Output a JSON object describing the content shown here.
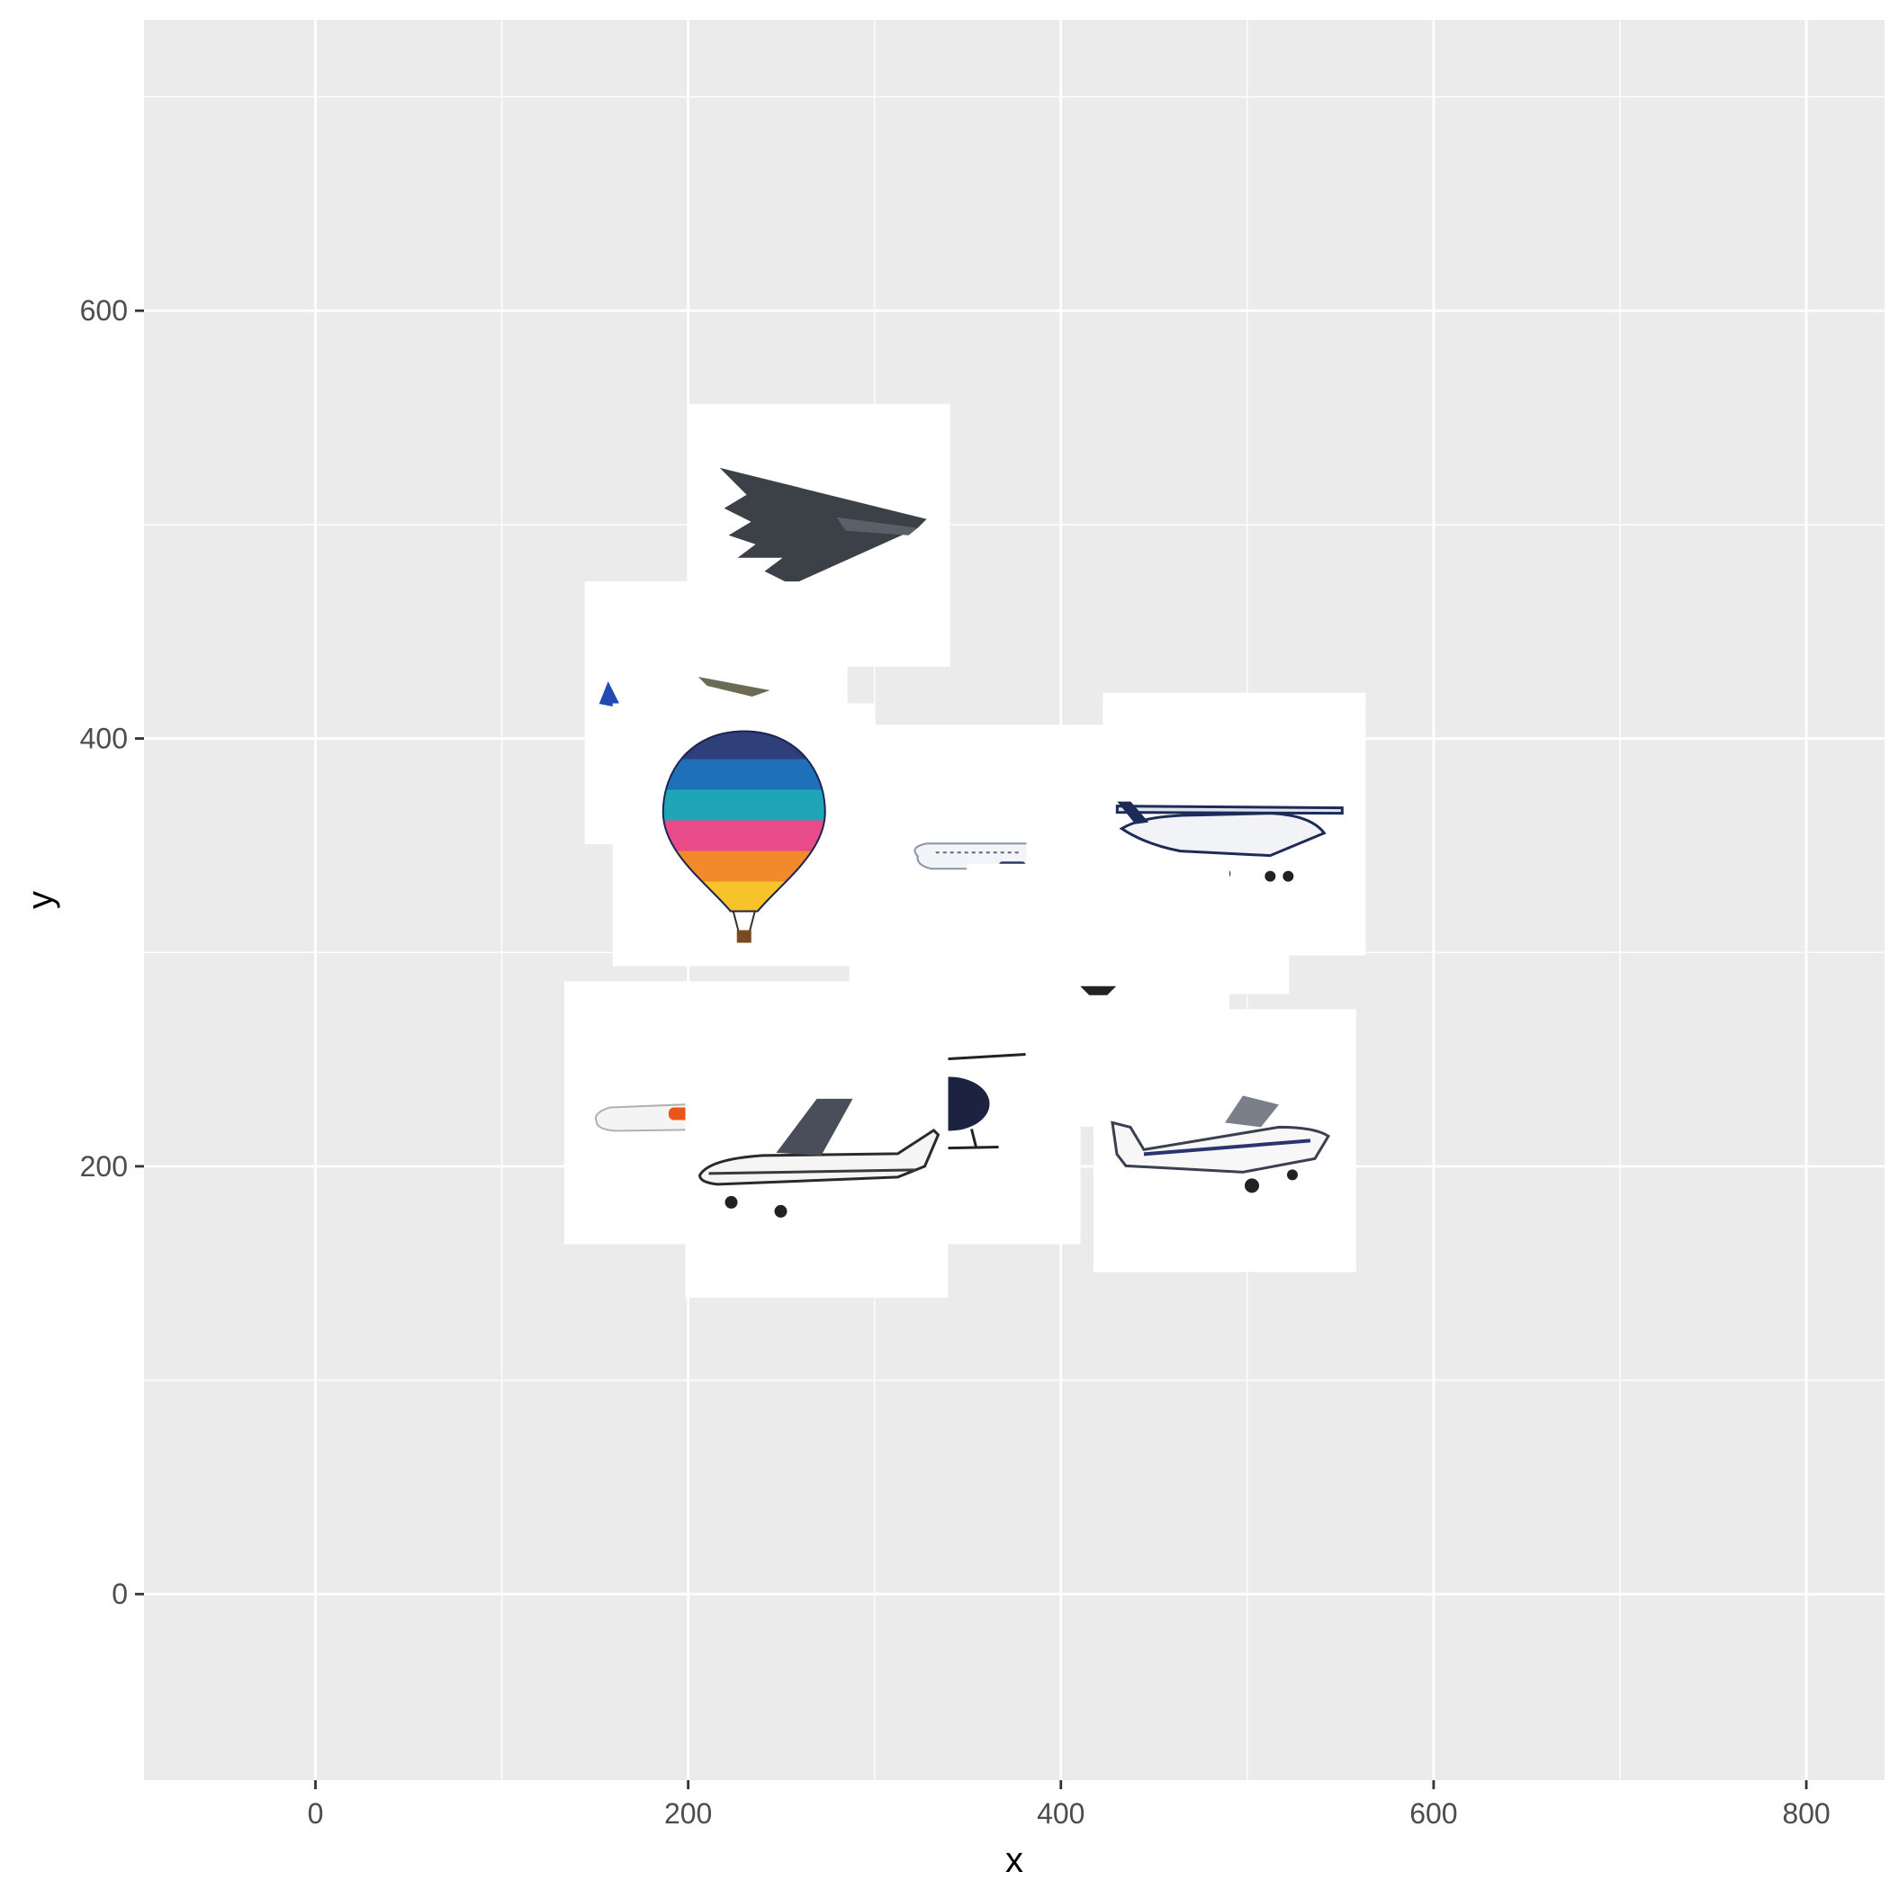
{
  "chart_data": {
    "type": "scatter",
    "marker": "aircraft-photo",
    "xlabel": "x",
    "ylabel": "y",
    "xlim": [
      -92,
      842
    ],
    "ylim": [
      -87,
      736
    ],
    "x_ticks": [
      0,
      200,
      400,
      600,
      800
    ],
    "y_ticks": [
      0,
      200,
      400,
      600
    ],
    "grid": true,
    "colors": {
      "panel": "#EBEBEB",
      "grid": "#FFFFFF",
      "tile": "#FFFFFF"
    },
    "points": [
      {
        "x": 270,
        "y": 495,
        "icon": "stealth-bomber-icon"
      },
      {
        "x": 215,
        "y": 412,
        "icon": "airliner-icon"
      },
      {
        "x": 357,
        "y": 345,
        "icon": "airliner-side-icon"
      },
      {
        "x": 452,
        "y": 342,
        "icon": "tail-fin-icon"
      },
      {
        "x": 493,
        "y": 360,
        "icon": "cessna-high-wing-icon"
      },
      {
        "x": 230,
        "y": 355,
        "icon": "hot-air-balloon-icon"
      },
      {
        "x": 420,
        "y": 280,
        "icon": "jet-icon"
      },
      {
        "x": 204,
        "y": 225,
        "icon": "orange-airliner-icon"
      },
      {
        "x": 340,
        "y": 225,
        "icon": "helicopter-icon"
      },
      {
        "x": 269,
        "y": 200,
        "icon": "cessna-d-eowi-icon"
      },
      {
        "x": 488,
        "y": 212,
        "icon": "cessna-g-jmke-icon"
      }
    ]
  }
}
